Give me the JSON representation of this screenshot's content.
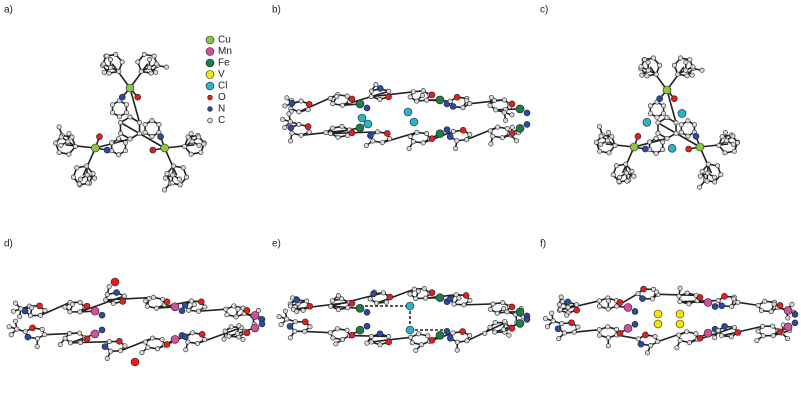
{
  "panels": [
    {
      "label": "a)"
    },
    {
      "label": "b)"
    },
    {
      "label": "c)"
    },
    {
      "label": "d)"
    },
    {
      "label": "e)"
    },
    {
      "label": "f)"
    }
  ],
  "legend": [
    {
      "label": "Cu",
      "color": "#8cc63f"
    },
    {
      "label": "Mn",
      "color": "#d24f9c"
    },
    {
      "label": "Fe",
      "color": "#1e7b4a"
    },
    {
      "label": "V",
      "color": "#f2e500"
    },
    {
      "label": "Cl",
      "color": "#2bb3c6"
    },
    {
      "label": "O",
      "color": "#e3201b"
    },
    {
      "label": "N",
      "color": "#2a4aa6"
    },
    {
      "label": "C",
      "color": "#d9d9d9"
    }
  ]
}
